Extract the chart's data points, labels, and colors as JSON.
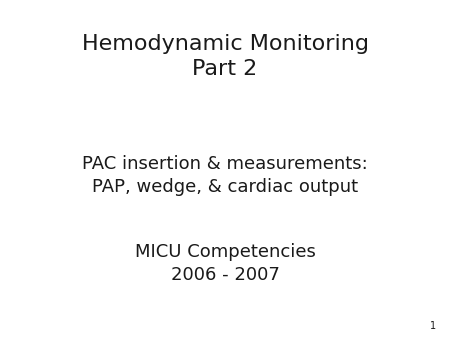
{
  "background_color": "#ffffff",
  "title_line1": "Hemodynamic Monitoring",
  "title_line2": "Part 2",
  "subtitle_line1": "PAC insertion & measurements:",
  "subtitle_line2": "PAP, wedge, & cardiac output",
  "footer_line1": "MICU Competencies",
  "footer_line2": "2006 - 2007",
  "slide_number": "1",
  "text_color": "#1a1a1a",
  "title_fontsize": 16,
  "body_fontsize": 13,
  "slide_number_fontsize": 7,
  "font_family": "DejaVu Sans"
}
